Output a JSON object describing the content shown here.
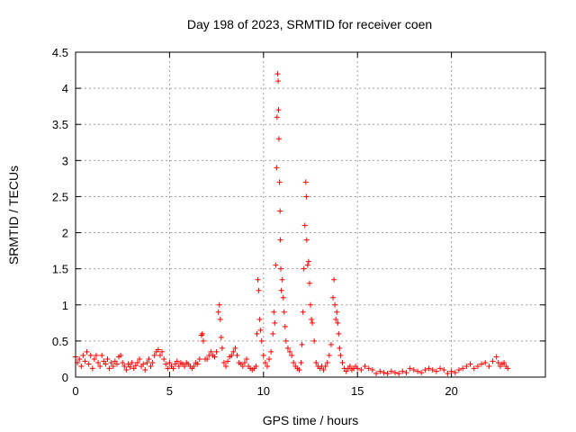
{
  "chart_data": {
    "type": "scatter",
    "title": "Day 198 of 2023, SRMTID for receiver coen",
    "xlabel": "GPS time / hours",
    "ylabel": "SRMTID / TECUs",
    "xlim": [
      0,
      25
    ],
    "ylim": [
      0,
      4.5
    ],
    "x_ticks": [
      0,
      5,
      10,
      15,
      20
    ],
    "x_tick_labels": [
      "0",
      "5",
      "10",
      "15",
      "20"
    ],
    "y_ticks": [
      0,
      0.5,
      1,
      1.5,
      2,
      2.5,
      3,
      3.5,
      4,
      4.5
    ],
    "y_tick_labels": [
      "0",
      "0.5",
      "1",
      "1.5",
      "2",
      "2.5",
      "3",
      "3.5",
      "4",
      "4.5"
    ],
    "grid": true,
    "marker": "+",
    "series": [
      {
        "name": "SRMTID",
        "color": "#ff0000",
        "points": [
          [
            0.0,
            0.28
          ],
          [
            0.1,
            0.2
          ],
          [
            0.2,
            0.25
          ],
          [
            0.3,
            0.15
          ],
          [
            0.4,
            0.3
          ],
          [
            0.5,
            0.22
          ],
          [
            0.6,
            0.35
          ],
          [
            0.7,
            0.18
          ],
          [
            0.8,
            0.3
          ],
          [
            0.9,
            0.12
          ],
          [
            1.0,
            0.25
          ],
          [
            1.1,
            0.3
          ],
          [
            1.2,
            0.2
          ],
          [
            1.3,
            0.15
          ],
          [
            1.4,
            0.3
          ],
          [
            1.5,
            0.22
          ],
          [
            1.6,
            0.18
          ],
          [
            1.7,
            0.25
          ],
          [
            1.8,
            0.12
          ],
          [
            1.9,
            0.2
          ],
          [
            2.0,
            0.15
          ],
          [
            2.1,
            0.22
          ],
          [
            2.2,
            0.18
          ],
          [
            2.3,
            0.28
          ],
          [
            2.4,
            0.3
          ],
          [
            2.5,
            0.2
          ],
          [
            2.6,
            0.15
          ],
          [
            2.7,
            0.1
          ],
          [
            2.8,
            0.18
          ],
          [
            2.9,
            0.14
          ],
          [
            3.0,
            0.2
          ],
          [
            3.1,
            0.12
          ],
          [
            3.2,
            0.16
          ],
          [
            3.3,
            0.2
          ],
          [
            3.4,
            0.25
          ],
          [
            3.5,
            0.15
          ],
          [
            3.6,
            0.18
          ],
          [
            3.7,
            0.1
          ],
          [
            3.8,
            0.2
          ],
          [
            3.9,
            0.25
          ],
          [
            4.0,
            0.15
          ],
          [
            4.1,
            0.2
          ],
          [
            4.2,
            0.3
          ],
          [
            4.3,
            0.35
          ],
          [
            4.4,
            0.38
          ],
          [
            4.5,
            0.3
          ],
          [
            4.6,
            0.35
          ],
          [
            4.7,
            0.25
          ],
          [
            4.8,
            0.18
          ],
          [
            4.9,
            0.12
          ],
          [
            5.0,
            0.2
          ],
          [
            5.1,
            0.15
          ],
          [
            5.2,
            0.12
          ],
          [
            5.3,
            0.18
          ],
          [
            5.4,
            0.22
          ],
          [
            5.5,
            0.15
          ],
          [
            5.6,
            0.2
          ],
          [
            5.7,
            0.18
          ],
          [
            5.8,
            0.15
          ],
          [
            5.9,
            0.2
          ],
          [
            6.0,
            0.18
          ],
          [
            6.1,
            0.15
          ],
          [
            6.2,
            0.12
          ],
          [
            6.3,
            0.15
          ],
          [
            6.4,
            0.2
          ],
          [
            6.5,
            0.18
          ],
          [
            6.6,
            0.25
          ],
          [
            6.7,
            0.58
          ],
          [
            6.75,
            0.6
          ],
          [
            6.8,
            0.5
          ],
          [
            6.9,
            0.25
          ],
          [
            7.0,
            0.25
          ],
          [
            7.1,
            0.3
          ],
          [
            7.2,
            0.35
          ],
          [
            7.3,
            0.3
          ],
          [
            7.4,
            0.28
          ],
          [
            7.5,
            0.35
          ],
          [
            7.6,
            0.9
          ],
          [
            7.65,
            1.0
          ],
          [
            7.7,
            0.8
          ],
          [
            7.75,
            0.55
          ],
          [
            7.8,
            0.4
          ],
          [
            7.9,
            0.2
          ],
          [
            8.0,
            0.15
          ],
          [
            8.1,
            0.22
          ],
          [
            8.2,
            0.28
          ],
          [
            8.3,
            0.3
          ],
          [
            8.4,
            0.35
          ],
          [
            8.5,
            0.4
          ],
          [
            8.6,
            0.3
          ],
          [
            8.7,
            0.2
          ],
          [
            8.8,
            0.18
          ],
          [
            8.9,
            0.15
          ],
          [
            9.0,
            0.2
          ],
          [
            9.1,
            0.25
          ],
          [
            9.2,
            0.15
          ],
          [
            9.3,
            0.12
          ],
          [
            9.4,
            0.1
          ],
          [
            9.5,
            0.12
          ],
          [
            9.6,
            0.15
          ],
          [
            9.65,
            0.6
          ],
          [
            9.7,
            1.35
          ],
          [
            9.75,
            1.2
          ],
          [
            9.8,
            0.8
          ],
          [
            9.85,
            0.65
          ],
          [
            9.9,
            0.5
          ],
          [
            10.0,
            0.3
          ],
          [
            10.1,
            0.2
          ],
          [
            10.2,
            0.15
          ],
          [
            10.3,
            0.25
          ],
          [
            10.4,
            0.35
          ],
          [
            10.5,
            0.6
          ],
          [
            10.55,
            0.9
          ],
          [
            10.6,
            0.75
          ],
          [
            10.65,
            1.55
          ],
          [
            10.7,
            2.9
          ],
          [
            10.72,
            3.6
          ],
          [
            10.75,
            4.2
          ],
          [
            10.78,
            4.1
          ],
          [
            10.8,
            3.7
          ],
          [
            10.82,
            3.3
          ],
          [
            10.85,
            2.7
          ],
          [
            10.88,
            2.3
          ],
          [
            10.9,
            1.9
          ],
          [
            10.92,
            1.5
          ],
          [
            10.95,
            1.2
          ],
          [
            11.0,
            1.35
          ],
          [
            11.05,
            1.1
          ],
          [
            11.1,
            0.9
          ],
          [
            11.15,
            0.7
          ],
          [
            11.2,
            0.5
          ],
          [
            11.3,
            0.4
          ],
          [
            11.4,
            0.35
          ],
          [
            11.5,
            0.3
          ],
          [
            11.6,
            0.2
          ],
          [
            11.7,
            0.15
          ],
          [
            11.8,
            0.12
          ],
          [
            11.9,
            0.1
          ],
          [
            12.0,
            0.2
          ],
          [
            12.05,
            0.45
          ],
          [
            12.1,
            0.9
          ],
          [
            12.15,
            1.5
          ],
          [
            12.2,
            2.1
          ],
          [
            12.25,
            2.7
          ],
          [
            12.28,
            2.5
          ],
          [
            12.3,
            1.9
          ],
          [
            12.35,
            1.55
          ],
          [
            12.4,
            1.6
          ],
          [
            12.45,
            1.3
          ],
          [
            12.5,
            1.0
          ],
          [
            12.55,
            0.8
          ],
          [
            12.6,
            0.75
          ],
          [
            12.7,
            0.5
          ],
          [
            12.8,
            0.2
          ],
          [
            12.9,
            0.15
          ],
          [
            13.0,
            0.12
          ],
          [
            13.1,
            0.15
          ],
          [
            13.2,
            0.1
          ],
          [
            13.3,
            0.15
          ],
          [
            13.4,
            0.2
          ],
          [
            13.5,
            0.3
          ],
          [
            13.6,
            0.45
          ],
          [
            13.7,
            1.1
          ],
          [
            13.75,
            1.35
          ],
          [
            13.8,
            1.0
          ],
          [
            13.85,
            0.8
          ],
          [
            13.9,
            0.9
          ],
          [
            13.95,
            0.75
          ],
          [
            14.0,
            0.6
          ],
          [
            14.05,
            0.4
          ],
          [
            14.1,
            0.3
          ],
          [
            14.2,
            0.2
          ],
          [
            14.3,
            0.12
          ],
          [
            14.4,
            0.08
          ],
          [
            14.5,
            0.12
          ],
          [
            14.6,
            0.15
          ],
          [
            14.7,
            0.1
          ],
          [
            14.8,
            0.12
          ],
          [
            14.9,
            0.15
          ],
          [
            15.0,
            0.12
          ],
          [
            15.2,
            0.1
          ],
          [
            15.4,
            0.15
          ],
          [
            15.6,
            0.12
          ],
          [
            15.8,
            0.1
          ],
          [
            16.0,
            0.05
          ],
          [
            16.2,
            0.08
          ],
          [
            16.4,
            0.06
          ],
          [
            16.6,
            0.05
          ],
          [
            16.8,
            0.08
          ],
          [
            17.0,
            0.06
          ],
          [
            17.2,
            0.05
          ],
          [
            17.4,
            0.08
          ],
          [
            17.6,
            0.06
          ],
          [
            17.8,
            0.12
          ],
          [
            18.0,
            0.1
          ],
          [
            18.2,
            0.08
          ],
          [
            18.4,
            0.06
          ],
          [
            18.6,
            0.1
          ],
          [
            18.8,
            0.12
          ],
          [
            19.0,
            0.1
          ],
          [
            19.2,
            0.08
          ],
          [
            19.4,
            0.12
          ],
          [
            19.6,
            0.1
          ],
          [
            19.8,
            0.05
          ],
          [
            20.0,
            0.08
          ],
          [
            20.2,
            0.06
          ],
          [
            20.4,
            0.1
          ],
          [
            20.6,
            0.12
          ],
          [
            20.8,
            0.15
          ],
          [
            21.0,
            0.18
          ],
          [
            21.2,
            0.12
          ],
          [
            21.4,
            0.15
          ],
          [
            21.6,
            0.18
          ],
          [
            21.8,
            0.2
          ],
          [
            22.0,
            0.15
          ],
          [
            22.2,
            0.22
          ],
          [
            22.4,
            0.28
          ],
          [
            22.5,
            0.2
          ],
          [
            22.6,
            0.15
          ],
          [
            22.7,
            0.18
          ],
          [
            22.8,
            0.2
          ],
          [
            22.9,
            0.15
          ],
          [
            23.0,
            0.12
          ]
        ]
      }
    ]
  }
}
